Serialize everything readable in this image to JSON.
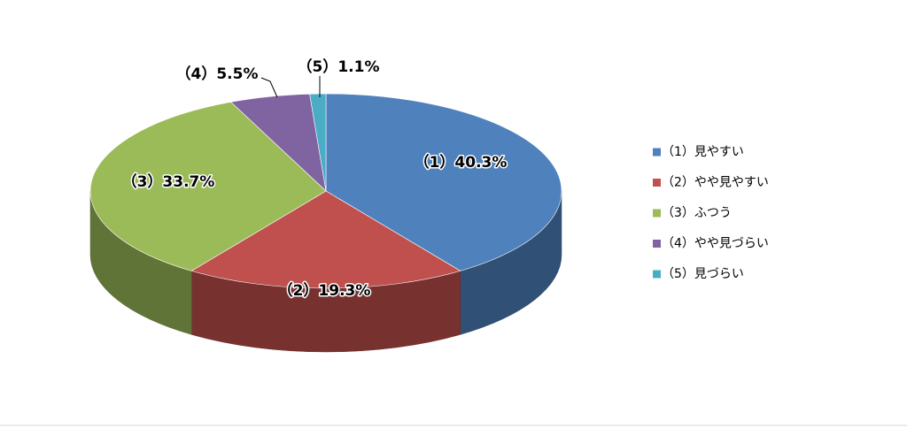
{
  "chart_data": {
    "type": "pie3d",
    "categories": [
      "（1）見やすい",
      "（2）やや見やすい",
      "（3）ふつう",
      "（4）やや見づらい",
      "（5）見づらい"
    ],
    "values": [
      40.3,
      19.3,
      33.7,
      5.5,
      1.1
    ],
    "value_labels": [
      "（1）40.3%",
      "（2）19.3%",
      "（3）33.7%",
      "（4）5.5%",
      "（5）1.1%"
    ],
    "colors": [
      "#4f81bd",
      "#c0504d",
      "#9bbb59",
      "#8064a2",
      "#4bacc6"
    ],
    "legend": "right"
  }
}
